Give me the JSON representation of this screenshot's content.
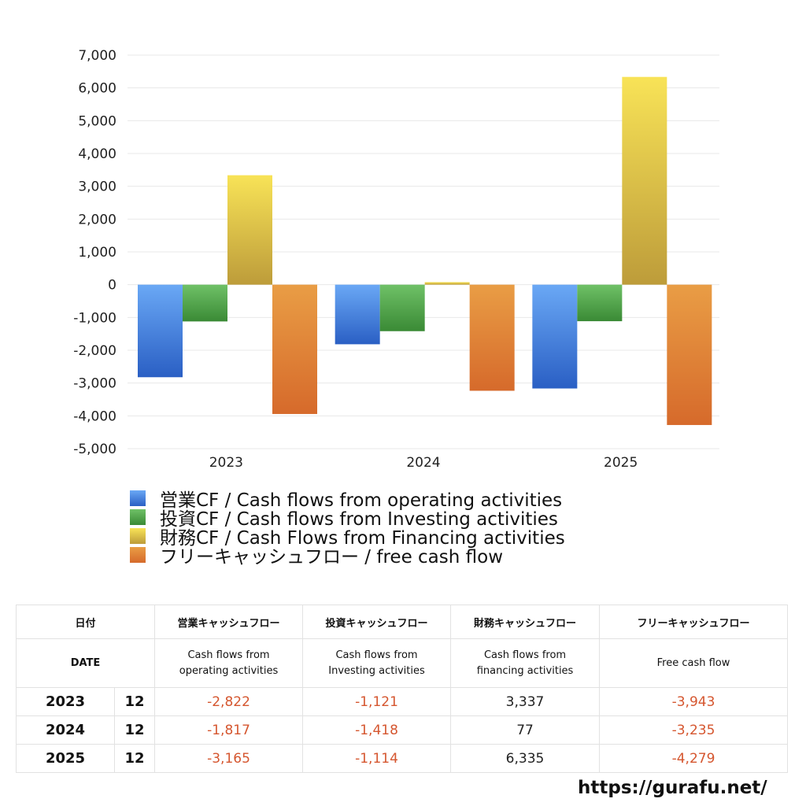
{
  "chart_data": {
    "type": "bar",
    "categories": [
      "2023",
      "2024",
      "2025"
    ],
    "series": [
      {
        "name": "営業CF / Cash flows from operating activities",
        "values": [
          -2822,
          -1817,
          -3165
        ],
        "color_top": "#6aa8f5",
        "color_bottom": "#2a5fc4"
      },
      {
        "name": "投資CF / Cash flows from Investing activities",
        "values": [
          -1121,
          -1418,
          -1114
        ],
        "color_top": "#6fc167",
        "color_bottom": "#3a8a35"
      },
      {
        "name": "財務CF / Cash Flows from Financing activities",
        "values": [
          3337,
          77,
          6335
        ],
        "color_top": "#f8e357",
        "color_bottom": "#bd9c3a"
      },
      {
        "name": "フリーキャッシュフロー / free cash flow",
        "values": [
          -3943,
          -3235,
          -4279
        ],
        "color_top": "#e99d45",
        "color_bottom": "#d66a2b"
      }
    ],
    "ylim": [
      -5000,
      7000
    ],
    "yticks": [
      "7,000",
      "6,000",
      "5,000",
      "4,000",
      "3,000",
      "2,000",
      "1,000",
      "0",
      "-1,000",
      "-2,000",
      "-3,000",
      "-4,000",
      "-5,000"
    ],
    "ytick_values": [
      7000,
      6000,
      5000,
      4000,
      3000,
      2000,
      1000,
      0,
      -1000,
      -2000,
      -3000,
      -4000,
      -5000
    ],
    "grid": true,
    "legend": "bottom"
  },
  "table": {
    "header_ja": {
      "date": "日付",
      "operating": "営業キャッシュフロー",
      "investing": "投資キャッシュフロー",
      "financing": "財務キャッシュフロー",
      "free": "フリーキャッシュフロー"
    },
    "header_en": {
      "date": "DATE",
      "operating_1": "Cash flows from",
      "operating_2": "operating activities",
      "investing_1": "Cash flows from",
      "investing_2": "Investing activities",
      "financing_1": "Cash flows from",
      "financing_2": "financing activities",
      "free": "Free cash flow"
    },
    "rows": [
      {
        "year": "2023",
        "month": "12",
        "operating": "-2,822",
        "investing": "-1,121",
        "financing": "3,337",
        "free": "-3,943"
      },
      {
        "year": "2024",
        "month": "12",
        "operating": "-1,817",
        "investing": "-1,418",
        "financing": "77",
        "free": "-3,235"
      },
      {
        "year": "2025",
        "month": "12",
        "operating": "-3,165",
        "investing": "-1,114",
        "financing": "6,335",
        "free": "-4,279"
      }
    ]
  },
  "footer": {
    "url": "https://gurafu.net/"
  }
}
